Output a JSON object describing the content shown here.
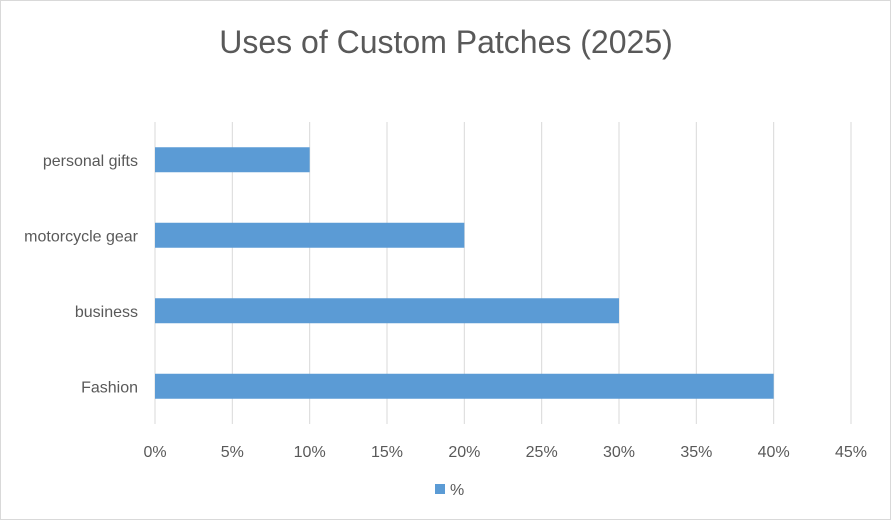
{
  "chart_data": {
    "type": "bar",
    "orientation": "horizontal",
    "title": "Uses of Custom Patches (2025)",
    "categories": [
      "personal gifts",
      "motorcycle gear",
      "business",
      "Fashion"
    ],
    "series": [
      {
        "name": "%",
        "values": [
          10,
          20,
          30,
          40
        ]
      }
    ],
    "xlim": [
      0,
      45
    ],
    "x_ticks": [
      0,
      5,
      10,
      15,
      20,
      25,
      30,
      35,
      40,
      45
    ],
    "x_tick_labels": [
      "0%",
      "5%",
      "10%",
      "15%",
      "20%",
      "25%",
      "30%",
      "35%",
      "40%",
      "45%"
    ],
    "xlabel": "",
    "ylabel": "",
    "grid": "vertical",
    "legend": "bottom",
    "bar_color": "#5b9bd5",
    "gridline_color": "#d9d9d9",
    "text_color": "#595959"
  }
}
